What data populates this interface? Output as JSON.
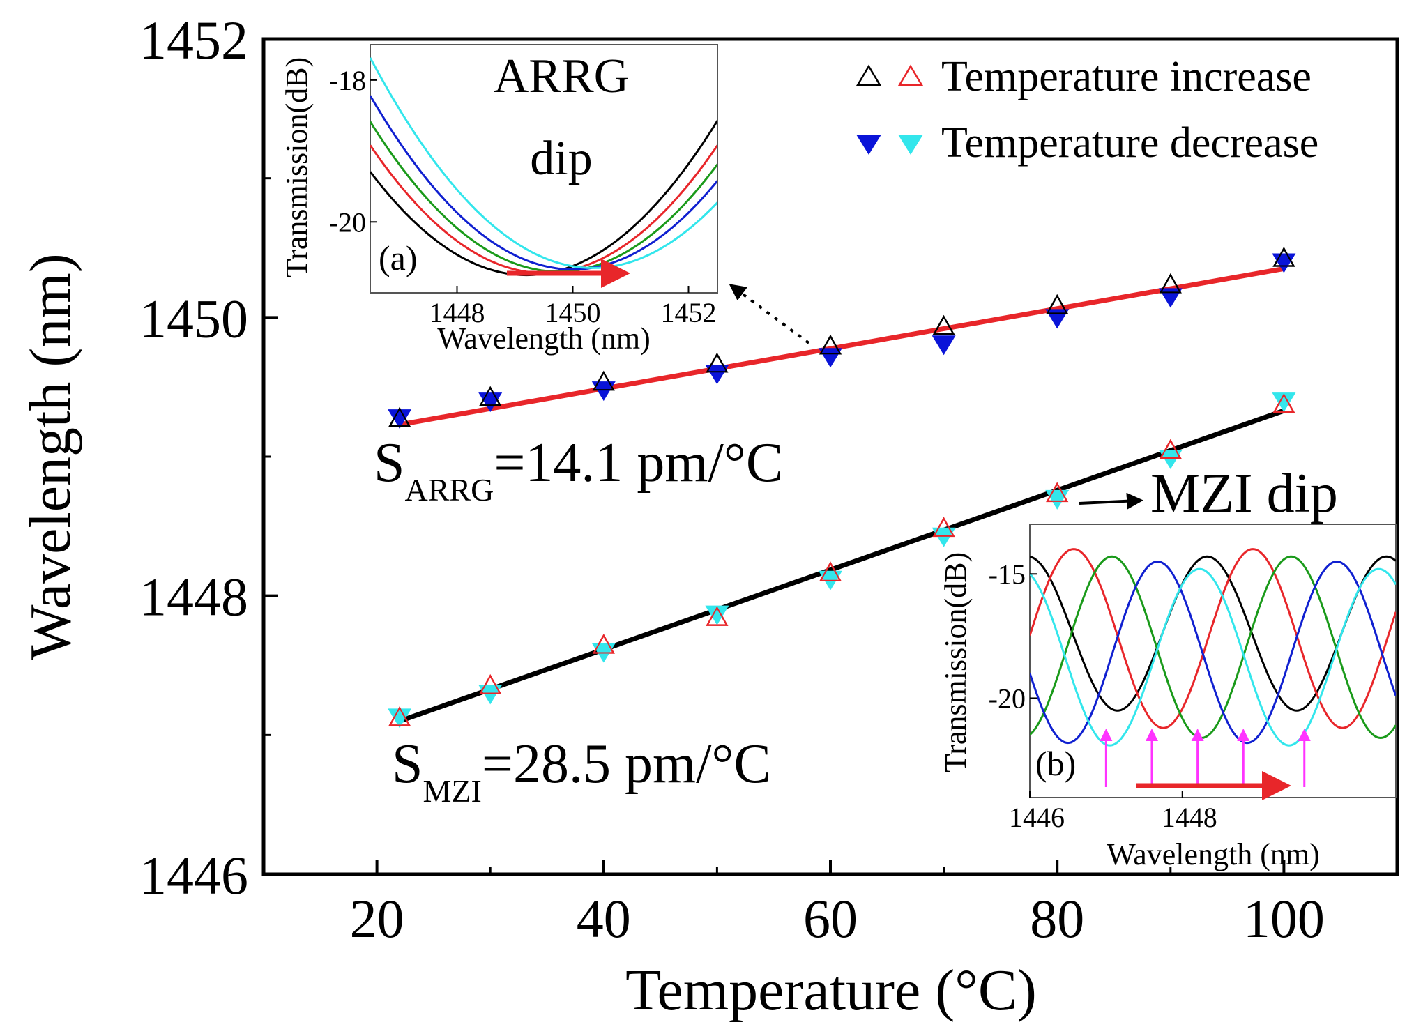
{
  "chart_data": {
    "type": "scatter",
    "xlabel": "Temperature (°C)",
    "ylabel": "Wavelength (nm)",
    "xlim": [
      10,
      110
    ],
    "ylim": [
      1446,
      1452
    ],
    "x_ticks": [
      20,
      40,
      60,
      80,
      100
    ],
    "y_ticks": [
      1446,
      1448,
      1450,
      1452
    ],
    "legend": {
      "placement": "top-right",
      "entries": [
        {
          "label": "Temperature increase",
          "marker": "open-triangle-up",
          "colors": [
            "#000000",
            "#e8262a"
          ]
        },
        {
          "label": "Temperature decrease",
          "marker": "filled-triangle-down",
          "colors": [
            "#0a14d8",
            "#33e6ec"
          ]
        }
      ]
    },
    "series": [
      {
        "name": "ARRG increase",
        "marker": "open-triangle-up",
        "color": "#000000",
        "x": [
          22,
          30,
          40,
          50,
          60,
          70,
          80,
          90,
          100
        ],
        "y": [
          1449.27,
          1449.42,
          1449.53,
          1449.66,
          1449.79,
          1449.93,
          1450.08,
          1450.23,
          1450.42
        ]
      },
      {
        "name": "ARRG decrease",
        "marker": "filled-triangle-down",
        "color": "#0a14d8",
        "x": [
          22,
          30,
          40,
          50,
          60,
          70,
          80,
          90,
          100
        ],
        "y": [
          1449.28,
          1449.4,
          1449.48,
          1449.6,
          1449.72,
          1449.81,
          1450.0,
          1450.15,
          1450.4
        ]
      },
      {
        "name": "MZI increase",
        "marker": "open-triangle-up",
        "color": "#e8262a",
        "x": [
          22,
          30,
          40,
          50,
          60,
          70,
          80,
          90,
          100
        ],
        "y": [
          1447.12,
          1447.35,
          1447.64,
          1447.84,
          1448.16,
          1448.48,
          1448.73,
          1449.04,
          1449.37
        ]
      },
      {
        "name": "MZI decrease",
        "marker": "filled-triangle-down",
        "color": "#33e6ec",
        "x": [
          22,
          30,
          40,
          50,
          60,
          70,
          80,
          90,
          100
        ],
        "y": [
          1447.13,
          1447.3,
          1447.6,
          1447.87,
          1448.12,
          1448.43,
          1448.7,
          1448.99,
          1449.4
        ]
      }
    ],
    "fits": [
      {
        "name": "ARRG fit",
        "color": "#e8262a",
        "x": [
          22,
          100
        ],
        "y": [
          1449.23,
          1450.35
        ]
      },
      {
        "name": "MZI fit",
        "color": "#000000",
        "x": [
          22,
          100
        ],
        "y": [
          1447.1,
          1449.33
        ]
      }
    ],
    "annotations": {
      "arrg_sensitivity": {
        "main": "S",
        "sub": "ARRG",
        "value": "=14.1 pm/°C"
      },
      "mzi_sensitivity": {
        "main": "S",
        "sub": "MZI",
        "value": "=28.5 pm/°C"
      },
      "mzi_dip": "MZI dip"
    },
    "inset_a": {
      "panel_label": "(a)",
      "title_line1": "ARRG",
      "title_line2": "dip",
      "xlabel": "Wavelength (nm)",
      "ylabel": "Transmission(dB)",
      "xlim": [
        1446.5,
        1452.5
      ],
      "ylim": [
        -21.0,
        -17.5
      ],
      "x_ticks": [
        1448,
        1450,
        1452
      ],
      "y_ticks": [
        -18,
        -20
      ],
      "curves": [
        {
          "color": "#000000",
          "center": 1449.2,
          "min": -20.75,
          "curv": 0.2
        },
        {
          "color": "#e8262a",
          "center": 1449.5,
          "min": -20.72,
          "curv": 0.2
        },
        {
          "color": "#1a9a1a",
          "center": 1449.75,
          "min": -20.7,
          "curv": 0.2
        },
        {
          "color": "#1020d0",
          "center": 1450.0,
          "min": -20.67,
          "curv": 0.2
        },
        {
          "color": "#33e6ec",
          "center": 1450.35,
          "min": -20.65,
          "curv": 0.2
        }
      ]
    },
    "inset_b": {
      "panel_label": "(b)",
      "xlabel": "Wavelength (nm)",
      "ylabel": "Transmission(dB)",
      "xlim": [
        1446,
        1450.8
      ],
      "ylim": [
        -24.0,
        -13.0
      ],
      "x_ticks": [
        1446,
        1448
      ],
      "y_ticks": [
        -15,
        -20
      ],
      "period": 2.35,
      "curves": [
        {
          "color": "#000000",
          "first_min": 1447.15,
          "min": -20.5,
          "max": -14.3
        },
        {
          "color": "#e8262a",
          "first_min": 1447.75,
          "min": -21.2,
          "max": -14.0
        },
        {
          "color": "#1a9a1a",
          "first_min": 1448.25,
          "min": -21.6,
          "max": -14.3
        },
        {
          "color": "#1020d0",
          "first_min": 1446.5,
          "min": -21.8,
          "max": -14.5
        },
        {
          "color": "#33e6ec",
          "first_min": 1447.05,
          "min": -21.9,
          "max": -14.8
        }
      ],
      "arrow_positions": [
        1447.0,
        1447.6,
        1448.2,
        1448.8,
        1449.6
      ]
    }
  }
}
